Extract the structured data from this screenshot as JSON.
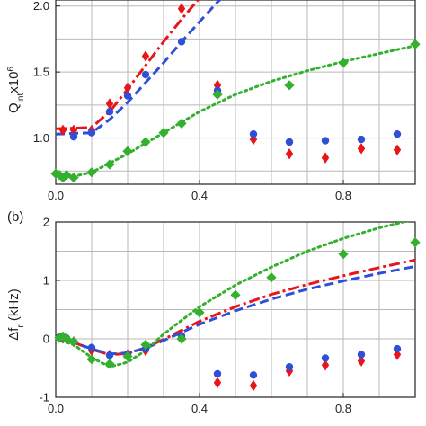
{
  "chart_data": [
    {
      "panel_label": "",
      "type": "line",
      "ylabel": "Q",
      "ylabel_sub": "int",
      "ylabel_rest": "x10",
      "ylabel_sup": "6",
      "xlim": [
        0,
        1.0
      ],
      "ylim": [
        0.65,
        2.1
      ],
      "xticks": [
        0.0,
        0.4,
        0.8
      ],
      "xtick_labels": [
        "0.0",
        "0.4",
        "0.8"
      ],
      "yticks": [
        1.0,
        1.5,
        2.0
      ],
      "ytick_labels": [
        "1.0",
        "1.5",
        "2.0"
      ],
      "grid": true,
      "colors": {
        "red": "#e8161b",
        "blue": "#2e4fd6",
        "green": "#33b02e"
      },
      "series": [
        {
          "color": "red",
          "marker": "diamond",
          "x": [
            0.02,
            0.05,
            0.1,
            0.15,
            0.2,
            0.25,
            0.35,
            0.45,
            0.55,
            0.65,
            0.75,
            0.85,
            0.95
          ],
          "y": [
            1.06,
            1.06,
            1.06,
            1.26,
            1.38,
            1.62,
            1.98,
            1.4,
            0.99,
            0.88,
            0.85,
            0.92,
            0.91
          ]
        },
        {
          "color": "blue",
          "marker": "circle",
          "x": [
            0.05,
            0.1,
            0.15,
            0.2,
            0.25,
            0.35,
            0.45,
            0.55,
            0.65,
            0.75,
            0.85,
            0.95
          ],
          "y": [
            1.01,
            1.04,
            1.2,
            1.32,
            1.48,
            1.73,
            1.36,
            1.03,
            0.97,
            0.98,
            0.99,
            1.03
          ]
        },
        {
          "color": "green",
          "marker": "diamond",
          "x": [
            0.0,
            0.01,
            0.02,
            0.03,
            0.05,
            0.1,
            0.15,
            0.2,
            0.25,
            0.3,
            0.35,
            0.45,
            0.65,
            0.8,
            1.0
          ],
          "y": [
            0.73,
            0.72,
            0.7,
            0.72,
            0.7,
            0.74,
            0.8,
            0.9,
            0.97,
            1.04,
            1.11,
            1.33,
            1.4,
            1.57,
            1.71
          ]
        }
      ],
      "fits": [
        {
          "color": "red",
          "style": "dash-dot",
          "x": [
            0.0,
            0.1,
            0.15,
            0.2,
            0.25,
            0.3,
            0.35,
            0.4,
            0.45
          ],
          "y": [
            1.07,
            1.08,
            1.2,
            1.37,
            1.55,
            1.73,
            1.9,
            2.06,
            2.2
          ]
        },
        {
          "color": "blue",
          "style": "dashed",
          "x": [
            0.0,
            0.1,
            0.15,
            0.2,
            0.25,
            0.3,
            0.35,
            0.4,
            0.45,
            0.5
          ],
          "y": [
            1.03,
            1.04,
            1.14,
            1.27,
            1.42,
            1.57,
            1.73,
            1.88,
            2.03,
            2.15
          ]
        },
        {
          "color": "green",
          "style": "dotted",
          "x": [
            0.0,
            0.05,
            0.1,
            0.2,
            0.3,
            0.4,
            0.5,
            0.6,
            0.7,
            0.8,
            0.9,
            1.0
          ],
          "y": [
            0.74,
            0.71,
            0.74,
            0.88,
            1.04,
            1.2,
            1.33,
            1.43,
            1.51,
            1.58,
            1.64,
            1.7
          ]
        }
      ]
    },
    {
      "panel_label": "(b)",
      "type": "line",
      "ylabel": "Δf",
      "ylabel_sub": "r",
      "ylabel_rest": " (kHz)",
      "ylabel_sup": "",
      "xlim": [
        0,
        1.0
      ],
      "ylim": [
        -1.0,
        2.0
      ],
      "xticks": [
        0.0,
        0.4,
        0.8
      ],
      "xtick_labels": [
        "0.0",
        "0.4",
        "0.8"
      ],
      "yticks": [
        -1,
        0,
        1,
        2
      ],
      "ytick_labels": [
        "-1",
        "0",
        "1",
        "2"
      ],
      "grid": true,
      "colors": {
        "red": "#e8161b",
        "blue": "#2e4fd6",
        "green": "#33b02e"
      },
      "series": [
        {
          "color": "red",
          "marker": "diamond",
          "x": [
            0.01,
            0.02,
            0.03,
            0.05,
            0.1,
            0.15,
            0.2,
            0.25,
            0.35,
            0.45,
            0.55,
            0.65,
            0.75,
            0.85,
            0.95
          ],
          "y": [
            0.02,
            0.01,
            0.0,
            -0.05,
            -0.2,
            -0.28,
            -0.27,
            -0.2,
            0.05,
            -0.75,
            -0.8,
            -0.55,
            -0.45,
            -0.38,
            -0.27
          ]
        },
        {
          "color": "blue",
          "marker": "circle",
          "x": [
            0.01,
            0.02,
            0.03,
            0.05,
            0.1,
            0.15,
            0.2,
            0.25,
            0.35,
            0.45,
            0.55,
            0.65,
            0.75,
            0.85,
            0.95
          ],
          "y": [
            0.03,
            0.02,
            0.01,
            -0.05,
            -0.15,
            -0.28,
            -0.26,
            -0.17,
            0.05,
            -0.6,
            -0.62,
            -0.48,
            -0.33,
            -0.27,
            -0.17
          ]
        },
        {
          "color": "green",
          "marker": "diamond",
          "x": [
            0.01,
            0.02,
            0.03,
            0.05,
            0.1,
            0.15,
            0.2,
            0.25,
            0.35,
            0.4,
            0.5,
            0.6,
            0.8,
            1.0
          ],
          "y": [
            0.02,
            0.04,
            0.0,
            -0.05,
            -0.35,
            -0.43,
            -0.3,
            -0.1,
            0.0,
            0.45,
            0.75,
            1.05,
            1.45,
            1.65
          ]
        }
      ],
      "fits": [
        {
          "color": "red",
          "style": "dash-dot",
          "x": [
            0.0,
            0.05,
            0.1,
            0.15,
            0.2,
            0.25,
            0.3,
            0.4,
            0.5,
            0.6,
            0.7,
            0.8,
            0.9,
            1.0
          ],
          "y": [
            0.0,
            -0.06,
            -0.18,
            -0.27,
            -0.25,
            -0.15,
            -0.01,
            0.3,
            0.55,
            0.76,
            0.93,
            1.08,
            1.22,
            1.35
          ]
        },
        {
          "color": "blue",
          "style": "dashed",
          "x": [
            0.0,
            0.05,
            0.1,
            0.15,
            0.2,
            0.25,
            0.3,
            0.4,
            0.5,
            0.6,
            0.7,
            0.8,
            0.9,
            1.0
          ],
          "y": [
            0.0,
            -0.06,
            -0.17,
            -0.26,
            -0.24,
            -0.16,
            -0.03,
            0.25,
            0.48,
            0.68,
            0.85,
            0.99,
            1.12,
            1.24
          ]
        },
        {
          "color": "green",
          "style": "dotted",
          "x": [
            0.0,
            0.05,
            0.1,
            0.15,
            0.2,
            0.25,
            0.3,
            0.4,
            0.5,
            0.6,
            0.7,
            0.8,
            0.9,
            1.0
          ],
          "y": [
            0.0,
            -0.1,
            -0.32,
            -0.48,
            -0.4,
            -0.2,
            0.08,
            0.55,
            0.92,
            1.23,
            1.5,
            1.72,
            1.9,
            2.05
          ]
        }
      ]
    }
  ]
}
